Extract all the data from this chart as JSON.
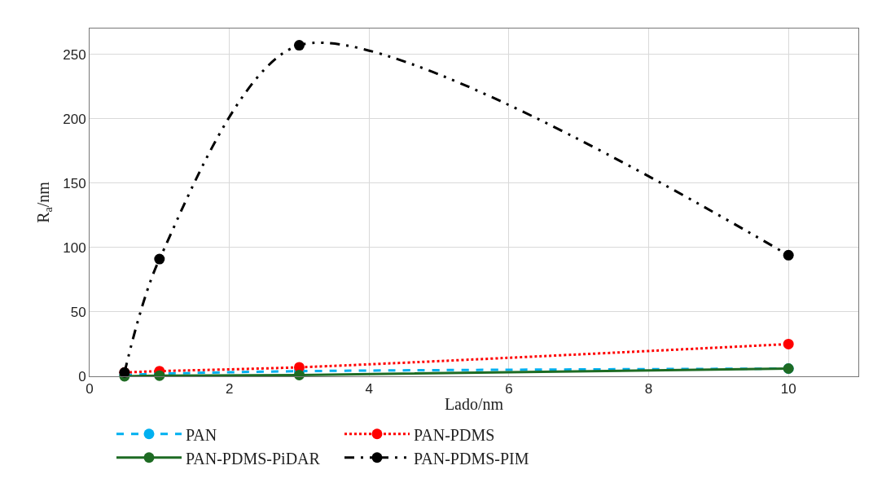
{
  "chart_data": {
    "type": "line",
    "xlabel": "Lado/nm",
    "ylabel": "R$_{a}$/nm",
    "x": [
      0.5,
      1,
      3,
      10
    ],
    "series": [
      {
        "name": "PAN",
        "color": "#00b0f0",
        "values": [
          1,
          2,
          4,
          6
        ],
        "line_style": "dashed"
      },
      {
        "name": "PAN-PDMS",
        "color": "#ff0000",
        "values": [
          3,
          4,
          7,
          25
        ],
        "line_style": "dotted"
      },
      {
        "name": "PAN-PDMS-PiDAR",
        "color": "#1e6b23",
        "values": [
          0,
          0.5,
          1,
          6
        ],
        "line_style": "solid"
      },
      {
        "name": "PAN-PDMS-PIM",
        "color": "#000000",
        "values": [
          3,
          91,
          257,
          94
        ],
        "line_style": "dashed"
      }
    ],
    "xlim": [
      0,
      11
    ],
    "xticks": [
      0,
      2,
      4,
      6,
      8,
      10
    ],
    "ylim": [
      0,
      270
    ],
    "yticks": [
      0,
      50,
      100,
      150,
      200,
      250
    ],
    "grid": true,
    "legend": "bottom",
    "marker": "circle"
  }
}
